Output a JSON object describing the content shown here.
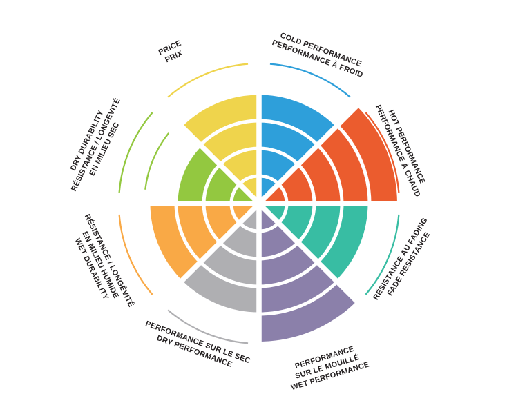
{
  "page": {
    "background": "#FFFFFF",
    "text_color": "#231F20"
  },
  "chart_data": {
    "type": "pie",
    "subtype": "polar-wheel-rating",
    "title": "",
    "levels": 5,
    "grid": "concentric-rings",
    "legend_position": "radial-labels-bilingual",
    "ring_gap_color": "#FFFFFF",
    "segments": [
      {
        "id": "cold-performance",
        "label_lines": [
          "COLD PERFORMANCE",
          "PERFORMANCE À FROID"
        ],
        "value": 4,
        "color": "#2E9FDA",
        "outer_label_arc": true
      },
      {
        "id": "hot-performance",
        "label_lines": [
          "HOT PERFORMANCE",
          "PERFORMANCE À CHAUD"
        ],
        "value": 5,
        "color": "#EB5C2E",
        "outer_label_arc": true
      },
      {
        "id": "fade-resistance",
        "label_lines": [
          "RÉSISTANCE AU FADING",
          "FADE RESISTANCE"
        ],
        "value": 4,
        "color": "#38BDA3",
        "outer_label_arc": true
      },
      {
        "id": "wet-performance",
        "label_lines": [
          "PERFORMANCE",
          "SUR LE MOUILLÉ",
          "WET PERFORMANCE"
        ],
        "value": 5,
        "color": "#8B80AA",
        "outer_label_arc": false
      },
      {
        "id": "dry-performance",
        "label_lines": [
          "PERFORMANCE SUR LE SEC",
          "DRY PERFORMANCE"
        ],
        "value": 4,
        "color": "#AFAFB2",
        "outer_label_arc": true
      },
      {
        "id": "wet-durability",
        "label_lines": [
          "RÉSISTANCE / LONGÉVITÉ",
          "EN MILIEU HUMIDE",
          "WET DURABILITY"
        ],
        "value": 4,
        "color": "#F9A946",
        "outer_label_arc": true
      },
      {
        "id": "dry-durability",
        "label_lines": [
          "DRY DURABILITY",
          "RÉSISTANCE / LONGÉVITÉ",
          "EN MILIEU SEC"
        ],
        "value": 3,
        "color": "#93C840",
        "outer_label_arc": true,
        "extra_inner_arc": true
      },
      {
        "id": "price",
        "label_lines": [
          "PRICE",
          "PRIX"
        ],
        "value": 4,
        "color": "#EFD44C",
        "outer_label_arc": true
      }
    ]
  }
}
